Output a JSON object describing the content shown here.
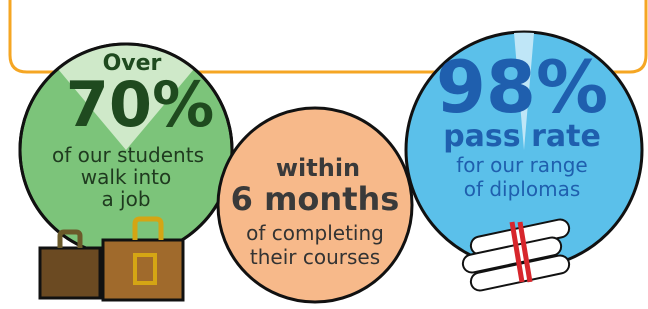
{
  "stats": [
    {
      "lead": "Over",
      "figure": "70%",
      "lines": [
        "of our students",
        "walk into",
        "a job"
      ]
    },
    {
      "lead": "within",
      "figure": "6 months",
      "lines": [
        "of completing",
        "their courses"
      ]
    },
    {
      "figure": "98%",
      "lead": "pass rate",
      "lines": [
        "for our range",
        "of diplomas"
      ]
    }
  ]
}
